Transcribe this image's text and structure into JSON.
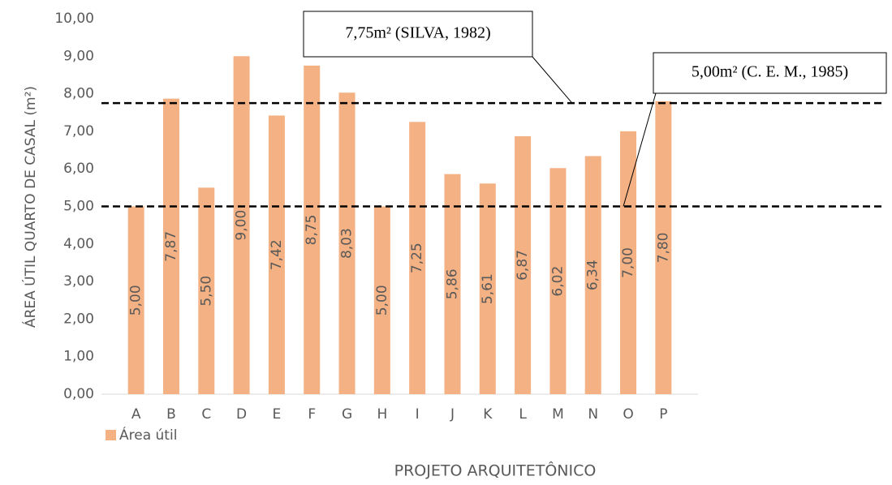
{
  "chart_data": {
    "type": "bar",
    "categories": [
      "A",
      "B",
      "C",
      "D",
      "E",
      "F",
      "G",
      "H",
      "I",
      "J",
      "K",
      "L",
      "M",
      "N",
      "O",
      "P"
    ],
    "series": [
      {
        "name": "Área útil",
        "color": "#f4b183",
        "values": [
          5.0,
          7.87,
          5.5,
          9.0,
          7.42,
          8.75,
          8.03,
          5.0,
          7.25,
          5.86,
          5.61,
          6.87,
          6.02,
          6.34,
          7.0,
          7.8
        ],
        "value_labels": [
          "5,00",
          "7,87",
          "5,50",
          "9,00",
          "7,42",
          "8,75",
          "8,03",
          "5,00",
          "7,25",
          "5,86",
          "5,61",
          "6,87",
          "6,02",
          "6,34",
          "7,00",
          "7,80"
        ]
      }
    ],
    "ylim": [
      0,
      10
    ],
    "yticks": [
      {
        "value": 0,
        "label": "0,00"
      },
      {
        "value": 1,
        "label": "1,00"
      },
      {
        "value": 2,
        "label": "2,00"
      },
      {
        "value": 3,
        "label": "3,00"
      },
      {
        "value": 4,
        "label": "4,00"
      },
      {
        "value": 5,
        "label": "5,00"
      },
      {
        "value": 6,
        "label": "6,00"
      },
      {
        "value": 7,
        "label": "7,00"
      },
      {
        "value": 8,
        "label": "8,00"
      },
      {
        "value": 9,
        "label": "9,00"
      },
      {
        "value": 10,
        "label": "10,00"
      }
    ],
    "grid": false,
    "y_label": "ÁREA ÚTIL QUARTO DE CASAL (m²)",
    "x_label": "PROJETO ARQUITETÔNICO",
    "legend": "bottom-left",
    "reference_lines": [
      {
        "value": 7.75,
        "label": "7,75m² (SILVA, 1982)"
      },
      {
        "value": 5,
        "label": "5,00m² (C. E. M., 1985)"
      }
    ]
  }
}
